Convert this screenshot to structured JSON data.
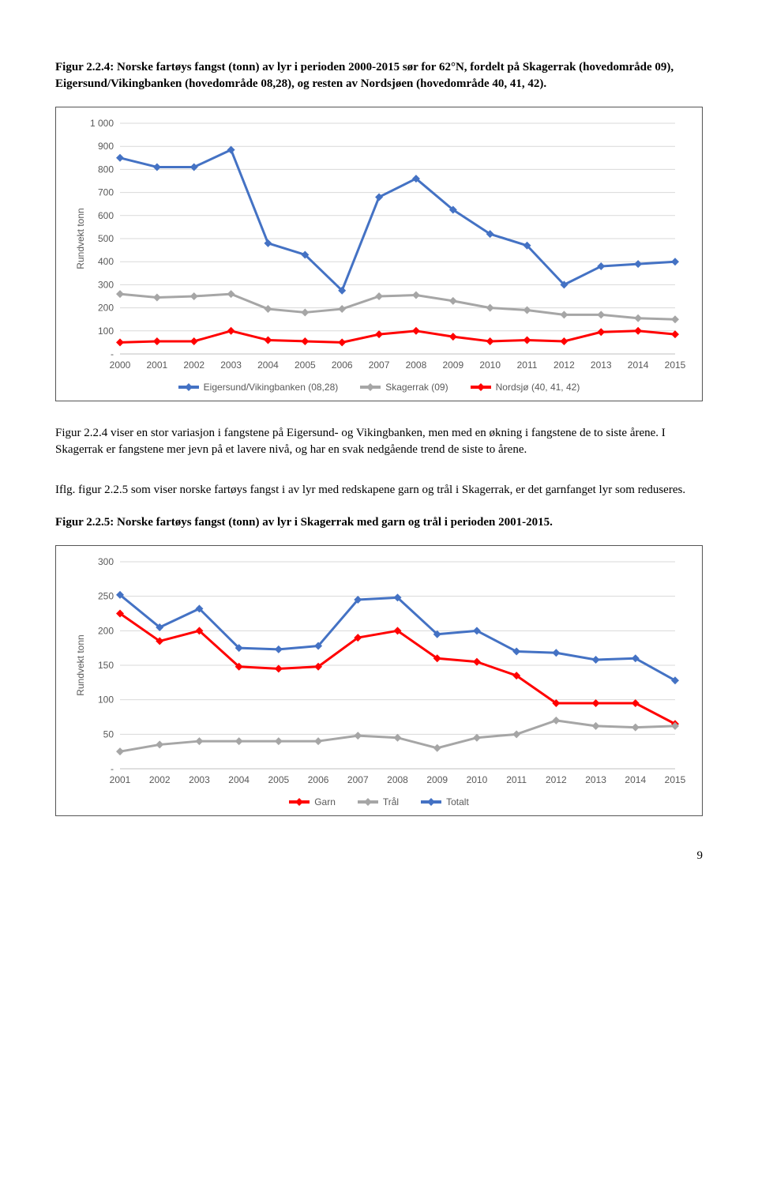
{
  "caption1_a": "Figur 2.2.4: Norske fartøys fangst (tonn) av lyr i perioden 2000-2015 sør for 62°N, fordelt på Skagerrak (hovedområde 09), Eigersund/Vikingbanken (hovedområde 08,28), og resten av Nordsjøen (hovedområde 40, 41, 42).",
  "chart1": {
    "type": "line",
    "ylabel": "Rundvekt tonn",
    "x_categories": [
      "2000",
      "2001",
      "2002",
      "2003",
      "2004",
      "2005",
      "2006",
      "2007",
      "2008",
      "2009",
      "2010",
      "2011",
      "2012",
      "2013",
      "2014",
      "2015"
    ],
    "y_min": 0,
    "y_max": 1000,
    "y_step": 100,
    "y_tick_labels": [
      "-",
      "100",
      "200",
      "300",
      "400",
      "500",
      "600",
      "700",
      "800",
      "900",
      "1 000"
    ],
    "background_color": "#ffffff",
    "grid_color": "#d9d9d9",
    "label_color": "#595959",
    "label_fontsize": 12,
    "line_width": 3,
    "marker_size": 5,
    "series": [
      {
        "name": "Eigersund/Vikingbanken (08,28)",
        "color": "#4472c4",
        "values": [
          850,
          810,
          810,
          885,
          480,
          430,
          275,
          680,
          760,
          625,
          520,
          470,
          300,
          380,
          390,
          400
        ]
      },
      {
        "name": "Skagerrak (09)",
        "color": "#a6a6a6",
        "values": [
          260,
          245,
          250,
          260,
          195,
          180,
          195,
          250,
          255,
          230,
          200,
          190,
          170,
          170,
          155,
          150
        ]
      },
      {
        "name": "Nordsjø (40, 41, 42)",
        "color": "#ff0000",
        "values": [
          50,
          55,
          55,
          100,
          60,
          55,
          50,
          85,
          100,
          75,
          55,
          60,
          55,
          95,
          100,
          85
        ]
      }
    ]
  },
  "body1": "Figur 2.2.4 viser en stor variasjon i fangstene på Eigersund- og Vikingbanken, men med en økning i fangstene de to siste årene. I Skagerrak er fangstene mer jevn på et lavere nivå, og har en svak nedgående trend de siste to årene.",
  "body2": "Iflg. figur 2.2.5 som viser norske fartøys fangst i av lyr med redskapene garn og trål i Skagerrak, er det garnfanget lyr som reduseres.",
  "caption2": "Figur 2.2.5: Norske fartøys fangst (tonn) av lyr i Skagerrak med garn og trål i perioden 2001-2015.",
  "chart2": {
    "type": "line",
    "ylabel": "Rundvekt tonn",
    "x_categories": [
      "2001",
      "2002",
      "2003",
      "2004",
      "2005",
      "2006",
      "2007",
      "2008",
      "2009",
      "2010",
      "2011",
      "2012",
      "2013",
      "2014",
      "2015"
    ],
    "y_min": 0,
    "y_max": 300,
    "y_step": 50,
    "y_tick_labels": [
      "-",
      "50",
      "100",
      "150",
      "200",
      "250",
      "300"
    ],
    "background_color": "#ffffff",
    "grid_color": "#d9d9d9",
    "label_color": "#595959",
    "label_fontsize": 12,
    "line_width": 3,
    "marker_size": 5,
    "series": [
      {
        "name": "Garn",
        "color": "#ff0000",
        "values": [
          225,
          185,
          200,
          148,
          145,
          148,
          190,
          200,
          160,
          155,
          135,
          95,
          95,
          95,
          65
        ]
      },
      {
        "name": "Trål",
        "color": "#a6a6a6",
        "values": [
          25,
          35,
          40,
          40,
          40,
          40,
          48,
          45,
          30,
          45,
          50,
          70,
          62,
          60,
          62
        ]
      },
      {
        "name": "Totalt",
        "color": "#4472c4",
        "values": [
          252,
          205,
          232,
          175,
          173,
          178,
          245,
          248,
          195,
          200,
          170,
          168,
          158,
          160,
          128
        ]
      }
    ]
  },
  "page_number": "9"
}
